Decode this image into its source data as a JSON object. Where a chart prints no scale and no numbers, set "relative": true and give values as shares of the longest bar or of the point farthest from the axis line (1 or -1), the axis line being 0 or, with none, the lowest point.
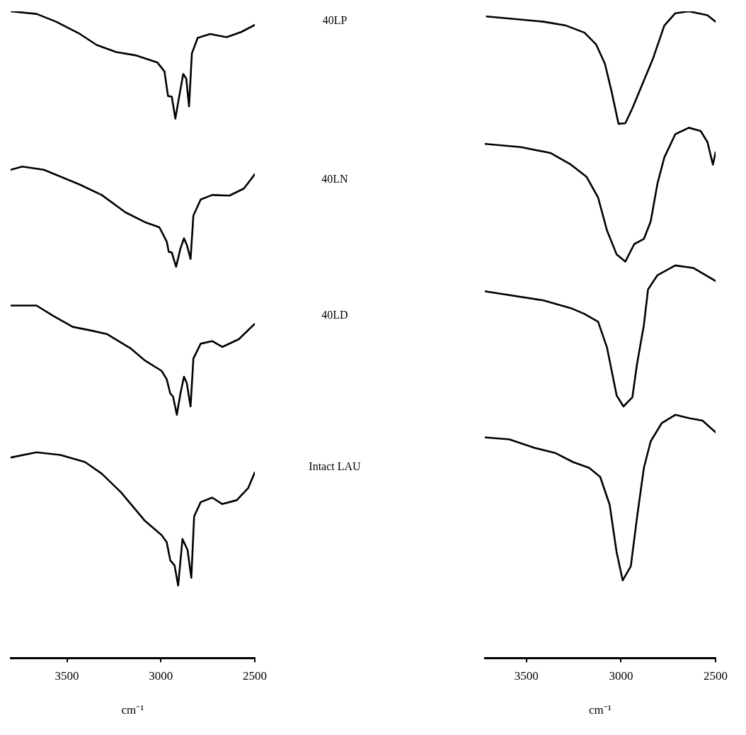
{
  "chart_data": [
    {
      "type": "line",
      "xlabel": "cm⁻¹",
      "xlim": [
        3800,
        2500
      ],
      "xticks": [
        3500,
        3000,
        2500
      ],
      "relative": true,
      "tick_labels": "x",
      "grid": false,
      "legend": false,
      "marker": "none",
      "line_style": "solid",
      "series": [
        {
          "name": "40LP",
          "color": "#000000",
          "x": [
            3800,
            3662,
            3558,
            3431,
            3342,
            3238,
            3135,
            3019,
            2981,
            2962,
            2942,
            2923,
            2904,
            2881,
            2865,
            2850,
            2835,
            2804,
            2738,
            2650,
            2573,
            2500
          ],
          "values": [
            1.0,
            0.996,
            0.984,
            0.965,
            0.948,
            0.937,
            0.932,
            0.921,
            0.907,
            0.869,
            0.868,
            0.834,
            0.866,
            0.903,
            0.896,
            0.853,
            0.935,
            0.959,
            0.965,
            0.96,
            0.968,
            0.979
          ]
        },
        {
          "name": "40LN",
          "color": "#000000",
          "x": [
            3800,
            3738,
            3623,
            3431,
            3315,
            3188,
            3085,
            3008,
            2969,
            2958,
            2942,
            2919,
            2896,
            2877,
            2862,
            2842,
            2827,
            2788,
            2727,
            2635,
            2558,
            2500
          ],
          "values": [
            0.755,
            0.76,
            0.755,
            0.732,
            0.716,
            0.689,
            0.674,
            0.666,
            0.644,
            0.628,
            0.627,
            0.605,
            0.633,
            0.649,
            0.639,
            0.617,
            0.684,
            0.709,
            0.716,
            0.715,
            0.726,
            0.748
          ]
        },
        {
          "name": "40LD",
          "color": "#000000",
          "x": [
            3800,
            3662,
            3573,
            3469,
            3365,
            3288,
            3162,
            3085,
            2996,
            2969,
            2950,
            2935,
            2915,
            2896,
            2877,
            2862,
            2842,
            2827,
            2788,
            2727,
            2673,
            2585,
            2500
          ],
          "values": [
            0.545,
            0.545,
            0.529,
            0.512,
            0.506,
            0.501,
            0.479,
            0.46,
            0.444,
            0.431,
            0.409,
            0.404,
            0.376,
            0.409,
            0.435,
            0.425,
            0.389,
            0.463,
            0.486,
            0.49,
            0.481,
            0.493,
            0.517
          ]
        },
        {
          "name": "Intact LAU",
          "color": "#000000",
          "x": [
            3800,
            3662,
            3535,
            3404,
            3315,
            3212,
            3085,
            2996,
            2969,
            2950,
            2927,
            2908,
            2885,
            2858,
            2838,
            2823,
            2788,
            2727,
            2673,
            2596,
            2535,
            2500
          ],
          "values": [
            0.31,
            0.318,
            0.314,
            0.303,
            0.285,
            0.256,
            0.212,
            0.19,
            0.179,
            0.151,
            0.143,
            0.112,
            0.184,
            0.167,
            0.124,
            0.219,
            0.241,
            0.248,
            0.238,
            0.244,
            0.263,
            0.287
          ]
        }
      ]
    },
    {
      "type": "line",
      "xlabel": "cm⁻¹",
      "xlim": [
        3720,
        2500
      ],
      "xticks": [
        3500,
        3000,
        2500
      ],
      "relative": true,
      "tick_labels": "x",
      "grid": false,
      "legend": false,
      "marker": "none",
      "line_style": "solid",
      "series": [
        {
          "color": "#000000",
          "x": [
            3710,
            3410,
            3291,
            3193,
            3132,
            3085,
            3049,
            3013,
            2977,
            2940,
            2893,
            2832,
            2771,
            2713,
            2641,
            2543,
            2500
          ],
          "values": [
            0.992,
            0.984,
            0.978,
            0.967,
            0.949,
            0.919,
            0.875,
            0.826,
            0.827,
            0.85,
            0.883,
            0.926,
            0.978,
            0.997,
            1.0,
            0.994,
            0.984
          ]
        },
        {
          "color": "#000000",
          "x": [
            3717,
            3529,
            3374,
            3265,
            3182,
            3121,
            3074,
            3023,
            2977,
            2930,
            2879,
            2843,
            2807,
            2771,
            2713,
            2641,
            2579,
            2543,
            2514,
            2500
          ],
          "values": [
            0.795,
            0.79,
            0.781,
            0.763,
            0.744,
            0.712,
            0.661,
            0.624,
            0.613,
            0.64,
            0.648,
            0.675,
            0.734,
            0.774,
            0.81,
            0.82,
            0.815,
            0.798,
            0.763,
            0.782
          ]
        },
        {
          "color": "#000000",
          "x": [
            3717,
            3410,
            3265,
            3193,
            3121,
            3074,
            3023,
            2987,
            2940,
            2915,
            2879,
            2857,
            2807,
            2713,
            2616,
            2500
          ],
          "values": [
            0.567,
            0.553,
            0.541,
            0.532,
            0.52,
            0.48,
            0.406,
            0.389,
            0.403,
            0.455,
            0.515,
            0.57,
            0.592,
            0.607,
            0.603,
            0.583
          ]
        },
        {
          "color": "#000000",
          "x": [
            3717,
            3590,
            3457,
            3348,
            3254,
            3168,
            3110,
            3060,
            3023,
            2991,
            2948,
            2915,
            2879,
            2843,
            2785,
            2713,
            2641,
            2569,
            2500
          ],
          "values": [
            0.341,
            0.338,
            0.325,
            0.317,
            0.303,
            0.294,
            0.28,
            0.237,
            0.163,
            0.12,
            0.142,
            0.218,
            0.294,
            0.335,
            0.363,
            0.376,
            0.371,
            0.367,
            0.349
          ]
        }
      ]
    }
  ]
}
